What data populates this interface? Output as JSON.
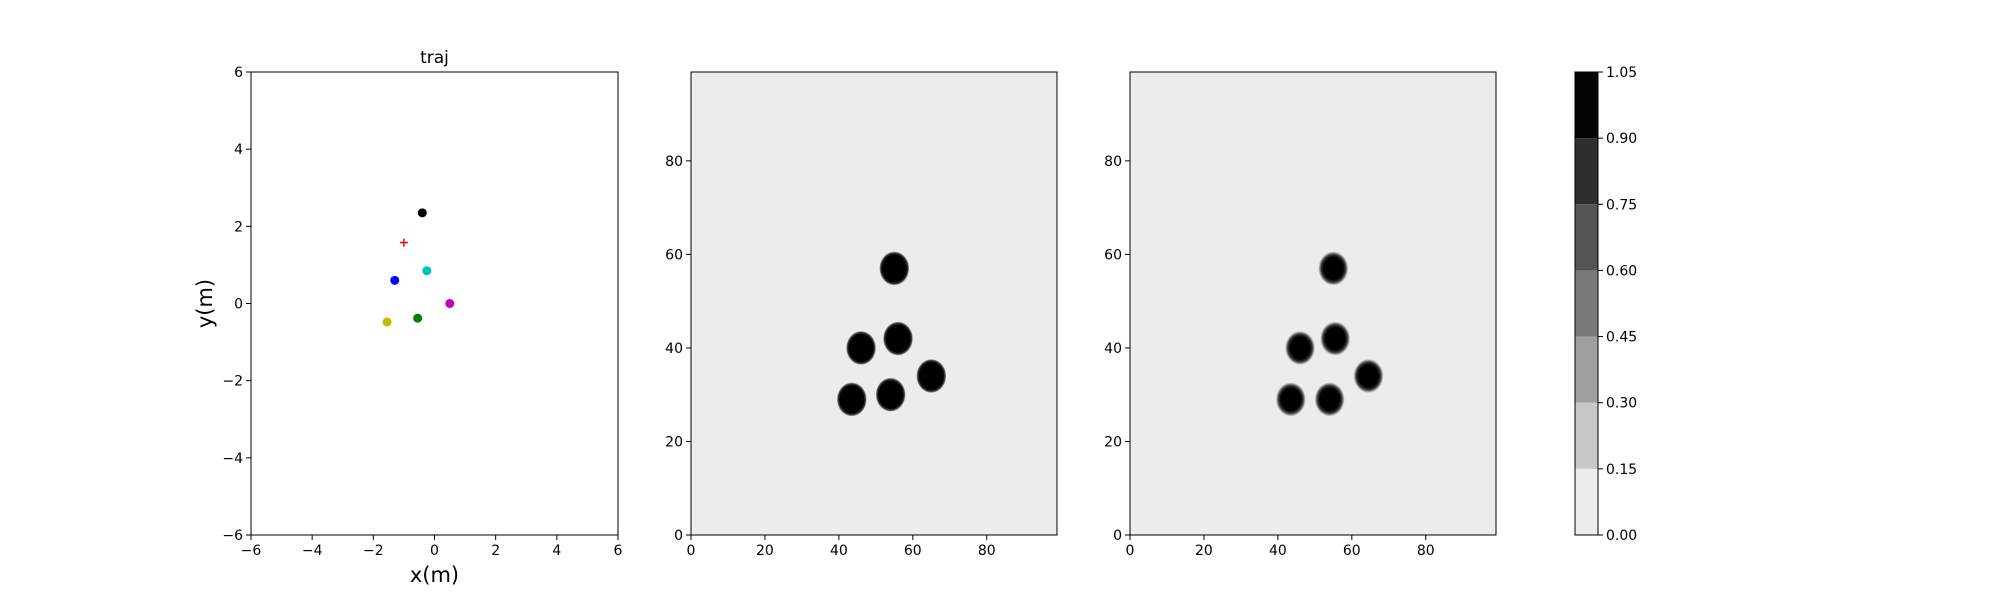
{
  "chart_data": [
    {
      "type": "scatter",
      "title": "traj",
      "xlabel": "x(m)",
      "ylabel": "y(m)",
      "xlim": [
        -6,
        6
      ],
      "ylim": [
        -6,
        6
      ],
      "xticks": [
        "−6",
        "−4",
        "−2",
        "0",
        "2",
        "4",
        "6"
      ],
      "yticks": [
        "−6",
        "−4",
        "−2",
        "0",
        "2",
        "4",
        "6"
      ],
      "grid": false,
      "points": [
        {
          "x": -0.4,
          "y": 2.35,
          "color": "#000000",
          "marker": "circle"
        },
        {
          "x": -1.3,
          "y": 0.6,
          "color": "#0000ff",
          "marker": "circle"
        },
        {
          "x": -0.25,
          "y": 0.85,
          "color": "#00bfbf",
          "marker": "circle"
        },
        {
          "x": 0.5,
          "y": 0.0,
          "color": "#bf00bf",
          "marker": "circle"
        },
        {
          "x": -0.55,
          "y": -0.38,
          "color": "#008000",
          "marker": "circle"
        },
        {
          "x": -1.55,
          "y": -0.48,
          "color": "#bfbf00",
          "marker": "circle"
        },
        {
          "x": -1.0,
          "y": 1.58,
          "color": "#ff0000",
          "marker": "plus"
        }
      ]
    },
    {
      "type": "heatmap",
      "xlim": [
        0,
        99
      ],
      "ylim": [
        0,
        99
      ],
      "xticks": [
        "0",
        "20",
        "40",
        "60",
        "80"
      ],
      "yticks": [
        "0",
        "20",
        "40",
        "60",
        "80"
      ],
      "background_value": 0.0,
      "blob_style": "hard",
      "blobs": [
        {
          "x": 55.0,
          "y": 57.0,
          "value": 1.0
        },
        {
          "x": 46.0,
          "y": 40.0,
          "value": 1.0
        },
        {
          "x": 56.0,
          "y": 42.0,
          "value": 1.0
        },
        {
          "x": 65.0,
          "y": 34.0,
          "value": 1.0
        },
        {
          "x": 43.5,
          "y": 29.0,
          "value": 1.0
        },
        {
          "x": 54.0,
          "y": 30.0,
          "value": 1.0
        }
      ]
    },
    {
      "type": "heatmap",
      "xlim": [
        0,
        99
      ],
      "ylim": [
        0,
        99
      ],
      "xticks": [
        "0",
        "20",
        "40",
        "60",
        "80"
      ],
      "yticks": [
        "0",
        "20",
        "40",
        "60",
        "80"
      ],
      "background_value": 0.0,
      "blob_style": "soft",
      "blobs": [
        {
          "x": 55.0,
          "y": 57.0,
          "value": 1.0
        },
        {
          "x": 46.0,
          "y": 40.0,
          "value": 1.0
        },
        {
          "x": 55.5,
          "y": 42.0,
          "value": 1.0
        },
        {
          "x": 64.5,
          "y": 34.0,
          "value": 1.0
        },
        {
          "x": 43.5,
          "y": 29.0,
          "value": 1.0
        },
        {
          "x": 54.0,
          "y": 29.0,
          "value": 1.0
        }
      ]
    }
  ],
  "colorbar": {
    "levels": [
      0.0,
      0.15,
      0.3,
      0.45,
      0.6,
      0.75,
      0.9,
      1.05
    ],
    "tick_labels": [
      "0.00",
      "0.15",
      "0.30",
      "0.45",
      "0.60",
      "0.75",
      "0.90",
      "1.05"
    ],
    "colors": [
      "#ececec",
      "#c8c8c8",
      "#a0a0a0",
      "#7a7a7a",
      "#545454",
      "#2e2e2e",
      "#050505"
    ]
  }
}
